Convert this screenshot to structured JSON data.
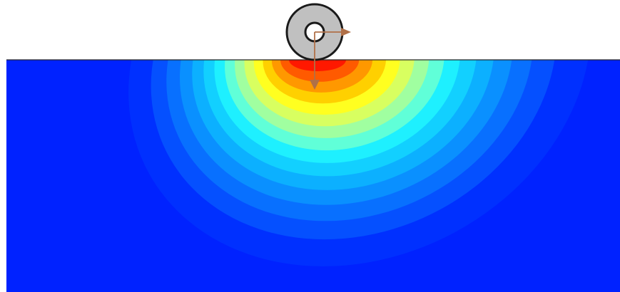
{
  "scene": {
    "description_visible_text": "",
    "colors": {
      "background": "#ffffff",
      "field_base": "#0022ff",
      "contour_levels": [
        "#0030ff",
        "#0550ff",
        "#0870ff",
        "#0a90ff",
        "#0cb0ff",
        "#12d0ff",
        "#1ef0ff",
        "#60ffd8",
        "#a0ffa0",
        "#d8ff60",
        "#ffff20",
        "#ffd000",
        "#ff9800",
        "#ff5a00",
        "#ff1800"
      ],
      "wheel_rim": "#1a1a1a",
      "wheel_fill": "#c0c0c0",
      "axle_fill": "#ffffff",
      "arrow": "#b07048"
    },
    "icons": {
      "wheel": "wheel-icon",
      "force_vertical": "arrow-down-icon",
      "force_horizontal": "arrow-right-icon"
    }
  }
}
